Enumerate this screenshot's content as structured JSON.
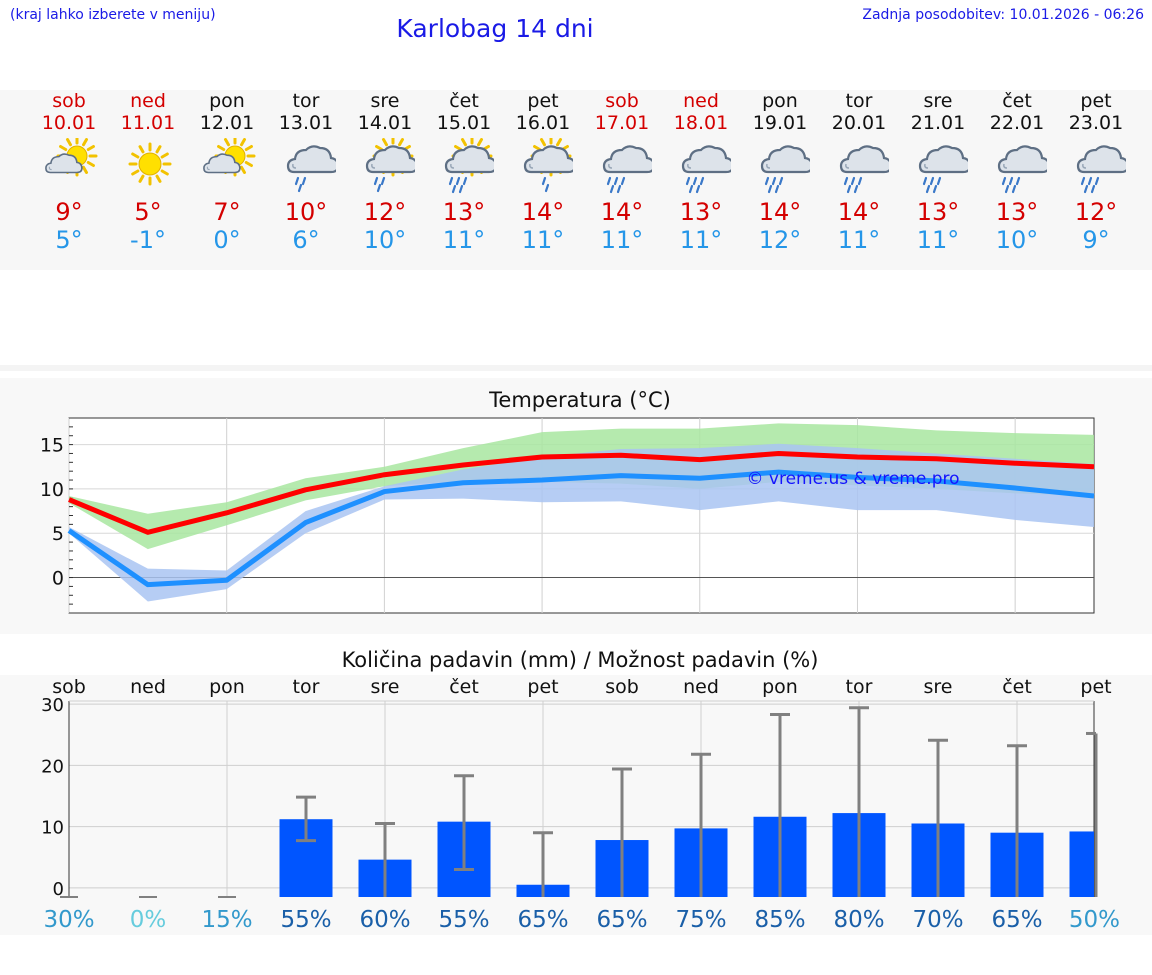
{
  "header": {
    "menu_hint": "(kraj lahko izberete v meniju)",
    "title": "Karlobag 14 dni",
    "updated": "Zadnja posodobitev: 10.01.2026 - 06:26"
  },
  "days": [
    {
      "name": "sob",
      "date": "10.01",
      "weekend": true,
      "icon": "partly-cloudy-icon",
      "tmax": "9°",
      "tmin": "5°"
    },
    {
      "name": "ned",
      "date": "11.01",
      "weekend": true,
      "icon": "sun-icon",
      "tmax": "5°",
      "tmin": "-1°"
    },
    {
      "name": "pon",
      "date": "12.01",
      "weekend": false,
      "icon": "partly-cloudy-icon",
      "tmax": "7°",
      "tmin": "0°"
    },
    {
      "name": "tor",
      "date": "13.01",
      "weekend": false,
      "icon": "cloud-rain-icon",
      "tmax": "10°",
      "tmin": "6°"
    },
    {
      "name": "sre",
      "date": "14.01",
      "weekend": false,
      "icon": "sun-cloud-rain-icon",
      "tmax": "12°",
      "tmin": "10°"
    },
    {
      "name": "čet",
      "date": "15.01",
      "weekend": false,
      "icon": "sun-cloud-heavy-rain-icon",
      "tmax": "13°",
      "tmin": "11°"
    },
    {
      "name": "pet",
      "date": "16.01",
      "weekend": false,
      "icon": "sun-cloud-light-rain-icon",
      "tmax": "14°",
      "tmin": "11°"
    },
    {
      "name": "sob",
      "date": "17.01",
      "weekend": true,
      "icon": "cloud-heavy-rain-icon",
      "tmax": "14°",
      "tmin": "11°"
    },
    {
      "name": "ned",
      "date": "18.01",
      "weekend": true,
      "icon": "cloud-heavy-rain-icon",
      "tmax": "13°",
      "tmin": "11°"
    },
    {
      "name": "pon",
      "date": "19.01",
      "weekend": false,
      "icon": "cloud-heavy-rain-icon",
      "tmax": "14°",
      "tmin": "12°"
    },
    {
      "name": "tor",
      "date": "20.01",
      "weekend": false,
      "icon": "cloud-heavy-rain-icon",
      "tmax": "14°",
      "tmin": "11°"
    },
    {
      "name": "sre",
      "date": "21.01",
      "weekend": false,
      "icon": "cloud-heavy-rain-icon",
      "tmax": "13°",
      "tmin": "11°"
    },
    {
      "name": "čet",
      "date": "22.01",
      "weekend": false,
      "icon": "cloud-heavy-rain-icon",
      "tmax": "13°",
      "tmin": "10°"
    },
    {
      "name": "pet",
      "date": "23.01",
      "weekend": false,
      "icon": "cloud-heavy-rain-icon",
      "tmax": "12°",
      "tmin": "9°"
    }
  ],
  "colors": {
    "max_line": "#ff0000",
    "min_line": "#1e90ff",
    "max_band": "#a8e6a0",
    "min_band": "#a9c4f2",
    "overlap_band": "#7fbfb0",
    "bar": "#0055ff",
    "error_bar": "#808080",
    "weekend_text": "#d40000",
    "tmin_text": "#2596e8"
  },
  "chart_data": [
    {
      "type": "line",
      "title": "Temperatura (°C)",
      "watermark": "© vreme.us & vreme.pro",
      "x": [
        0,
        1,
        2,
        3,
        4,
        5,
        6,
        7,
        8,
        9,
        10,
        11,
        12,
        13
      ],
      "ylim": [
        -4,
        18
      ],
      "yticks": [
        0,
        5,
        10,
        15
      ],
      "series": [
        {
          "name": "max",
          "values": [
            8.8,
            5.1,
            7.3,
            9.9,
            11.6,
            12.7,
            13.6,
            13.8,
            13.3,
            14.0,
            13.6,
            13.4,
            12.9,
            12.5
          ]
        },
        {
          "name": "max_low",
          "values": [
            8.4,
            3.2,
            5.9,
            8.7,
            10.3,
            10.9,
            10.8,
            10.6,
            10.0,
            10.8,
            10.4,
            10.0,
            9.5,
            9.2
          ]
        },
        {
          "name": "max_high",
          "values": [
            9.2,
            7.2,
            8.5,
            11.2,
            12.5,
            14.6,
            16.4,
            16.8,
            16.8,
            17.4,
            17.2,
            16.6,
            16.3,
            16.1
          ]
        },
        {
          "name": "min",
          "values": [
            5.3,
            -0.8,
            -0.3,
            6.2,
            9.7,
            10.7,
            11.0,
            11.5,
            11.2,
            11.9,
            11.3,
            10.9,
            10.1,
            9.2
          ]
        },
        {
          "name": "min_low",
          "values": [
            5.0,
            -2.7,
            -1.3,
            5.0,
            8.8,
            8.9,
            8.5,
            8.6,
            7.6,
            8.6,
            7.6,
            7.6,
            6.5,
            5.7
          ]
        },
        {
          "name": "min_high",
          "values": [
            5.7,
            1.0,
            0.8,
            7.5,
            10.3,
            12.2,
            13.6,
            14.5,
            14.6,
            15.1,
            14.6,
            14.0,
            13.4,
            12.8
          ]
        }
      ]
    },
    {
      "type": "bar",
      "title": "Količina padavin (mm) / Možnost padavin (%)",
      "categories": [
        "sob",
        "ned",
        "pon",
        "tor",
        "sre",
        "čet",
        "pet",
        "sob",
        "ned",
        "pon",
        "tor",
        "sre",
        "čet",
        "pet"
      ],
      "ylim": [
        -1.5,
        30.5
      ],
      "yticks": [
        0,
        10,
        20,
        30
      ],
      "values": [
        0,
        0,
        0,
        11.2,
        4.6,
        10.8,
        0.5,
        7.8,
        9.7,
        11.6,
        12.2,
        10.5,
        9.0,
        9.2
      ],
      "err_low": [
        0,
        0,
        0,
        7.7,
        0,
        3.0,
        0,
        0,
        0,
        0,
        0,
        0,
        0,
        0
      ],
      "err_high": [
        0,
        0,
        0,
        14.8,
        10.5,
        18.3,
        9.0,
        19.4,
        21.8,
        28.3,
        29.4,
        24.1,
        23.2,
        25.2
      ],
      "probability": [
        "30%",
        "0%",
        "15%",
        "55%",
        "60%",
        "55%",
        "65%",
        "65%",
        "75%",
        "85%",
        "80%",
        "70%",
        "65%",
        "50%"
      ],
      "probability_colors": [
        "#3399cc",
        "#66ccdd",
        "#3399cc",
        "#1a5fa8",
        "#1a5fa8",
        "#1a5fa8",
        "#1a5fa8",
        "#1a5fa8",
        "#1a5fa8",
        "#1a5fa8",
        "#1a5fa8",
        "#1a5fa8",
        "#1a5fa8",
        "#3399cc"
      ]
    }
  ]
}
